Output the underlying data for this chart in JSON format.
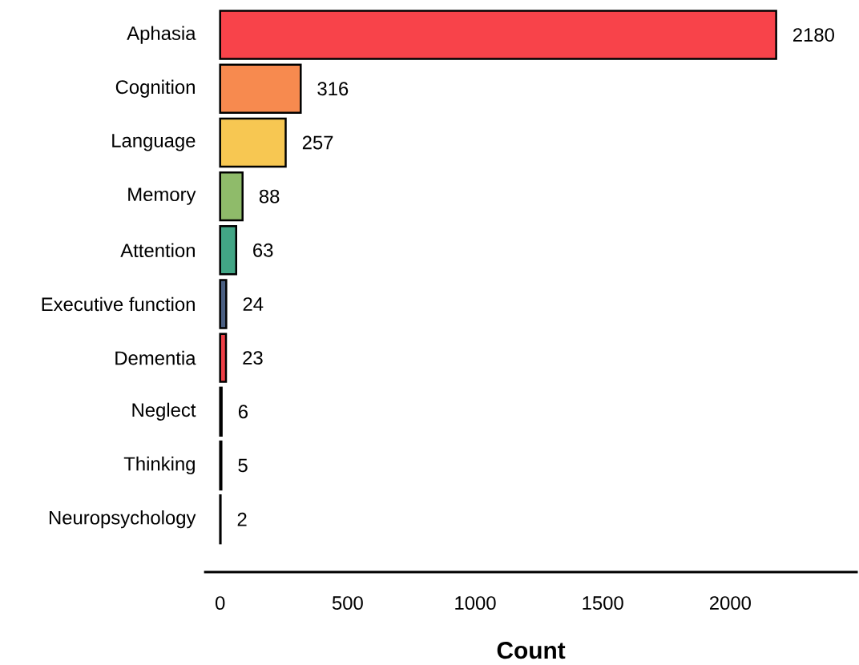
{
  "chart_data": {
    "type": "bar",
    "orientation": "horizontal",
    "xlabel": "Count",
    "categories": [
      "Aphasia",
      "Cognition",
      "Language",
      "Memory",
      "Attention",
      "Executive function",
      "Dementia",
      "Neglect",
      "Thinking",
      "Neuropsychology"
    ],
    "values": [
      2180,
      316,
      257,
      88,
      63,
      24,
      23,
      6,
      5,
      2
    ],
    "colors": [
      "#f8434a",
      "#f78a4f",
      "#f7c752",
      "#8fbb6a",
      "#42a585",
      "#4a5f82",
      "#ee3f46",
      "#222222",
      "#222222",
      "#222222"
    ],
    "xlim": [
      -63,
      2500
    ],
    "xticks": [
      0,
      500,
      1000,
      1500,
      2000
    ],
    "data_labels": true
  }
}
